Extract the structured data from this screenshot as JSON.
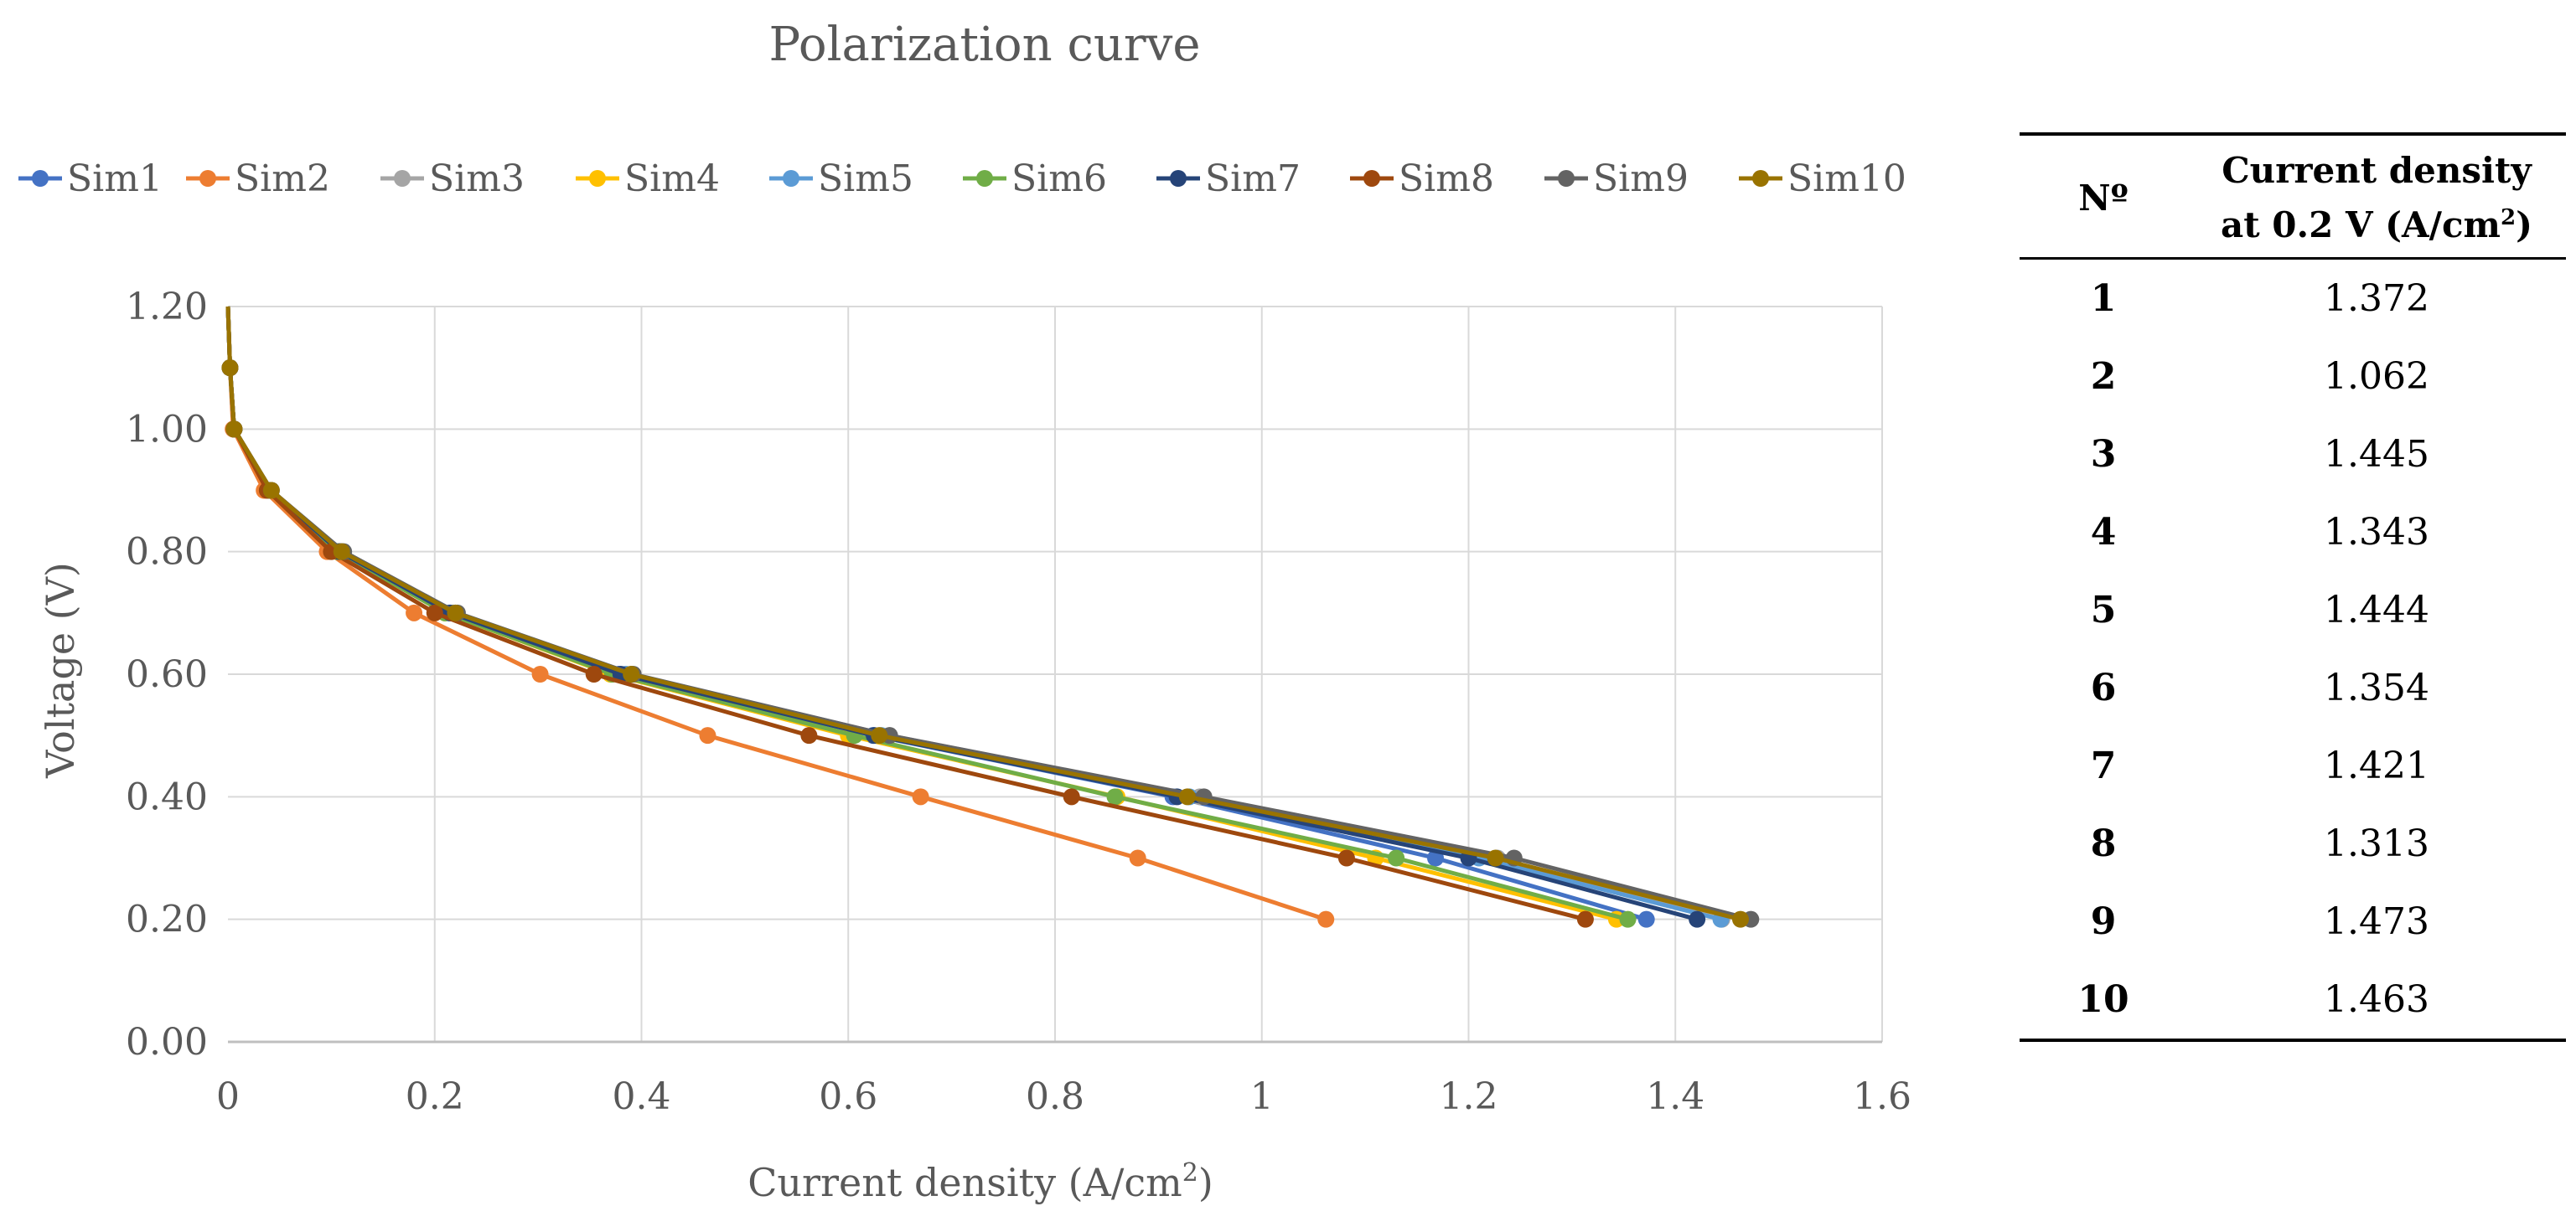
{
  "chart_data": {
    "type": "line",
    "title": "Polarization curve",
    "xlabel": "Current density (A/cm²)",
    "xlabel_main": "Current density (A/cm",
    "xlabel_sup": "2",
    "xlabel_end": ")",
    "ylabel": "Voltage (V)",
    "xlim": [
      0,
      1.6
    ],
    "ylim": [
      0,
      1.2
    ],
    "x_ticks": [
      0,
      0.2,
      0.4,
      0.6,
      0.8,
      1,
      1.2,
      1.4,
      1.6
    ],
    "x_tick_labels": [
      "0",
      "0.2",
      "0.4",
      "0.6",
      "0.8",
      "1",
      "1.2",
      "1.4",
      "1.6"
    ],
    "y_ticks": [
      0,
      0.2,
      0.4,
      0.6,
      0.8,
      1.0,
      1.2
    ],
    "y_tick_labels": [
      "0.00",
      "0.20",
      "0.40",
      "0.60",
      "0.80",
      "1.00",
      "1.20"
    ],
    "grid": true,
    "legend_position": "top",
    "series": [
      {
        "name": "Sim1",
        "color": "#4472C4",
        "x": [
          0,
          0.002,
          0.006,
          0.04,
          0.108,
          0.214,
          0.378,
          0.624,
          0.914,
          1.168,
          1.372
        ],
        "y": [
          1.2,
          1.1,
          1.0,
          0.9,
          0.8,
          0.7,
          0.6,
          0.5,
          0.4,
          0.3,
          0.2
        ]
      },
      {
        "name": "Sim2",
        "color": "#ED7D31",
        "x": [
          0,
          0.002,
          0.005,
          0.035,
          0.096,
          0.18,
          0.302,
          0.464,
          0.67,
          0.88,
          1.062
        ],
        "y": [
          1.2,
          1.1,
          1.0,
          0.9,
          0.8,
          0.7,
          0.6,
          0.5,
          0.4,
          0.3,
          0.2
        ]
      },
      {
        "name": "Sim3",
        "color": "#A5A5A5",
        "x": [
          0,
          0.002,
          0.006,
          0.042,
          0.11,
          0.22,
          0.39,
          0.64,
          0.94,
          1.228,
          1.445
        ],
        "y": [
          1.2,
          1.1,
          1.0,
          0.9,
          0.8,
          0.7,
          0.6,
          0.5,
          0.4,
          0.3,
          0.2
        ]
      },
      {
        "name": "Sim4",
        "color": "#FFC000",
        "x": [
          0,
          0.002,
          0.006,
          0.04,
          0.106,
          0.21,
          0.37,
          0.6,
          0.86,
          1.11,
          1.343
        ],
        "y": [
          1.2,
          1.1,
          1.0,
          0.9,
          0.8,
          0.7,
          0.6,
          0.5,
          0.4,
          0.3,
          0.2
        ]
      },
      {
        "name": "Sim5",
        "color": "#5B9BD5",
        "x": [
          0,
          0.002,
          0.006,
          0.042,
          0.11,
          0.218,
          0.385,
          0.632,
          0.93,
          1.21,
          1.444
        ],
        "y": [
          1.2,
          1.1,
          1.0,
          0.9,
          0.8,
          0.7,
          0.6,
          0.5,
          0.4,
          0.3,
          0.2
        ]
      },
      {
        "name": "Sim6",
        "color": "#70AD47",
        "x": [
          0,
          0.002,
          0.006,
          0.04,
          0.106,
          0.21,
          0.372,
          0.606,
          0.858,
          1.13,
          1.354
        ],
        "y": [
          1.2,
          1.1,
          1.0,
          0.9,
          0.8,
          0.7,
          0.6,
          0.5,
          0.4,
          0.3,
          0.2
        ]
      },
      {
        "name": "Sim7",
        "color": "#264478",
        "x": [
          0,
          0.002,
          0.006,
          0.041,
          0.108,
          0.215,
          0.38,
          0.625,
          0.918,
          1.2,
          1.421
        ],
        "y": [
          1.2,
          1.1,
          1.0,
          0.9,
          0.8,
          0.7,
          0.6,
          0.5,
          0.4,
          0.3,
          0.2
        ]
      },
      {
        "name": "Sim8",
        "color": "#9E480E",
        "x": [
          0,
          0.002,
          0.006,
          0.038,
          0.1,
          0.2,
          0.354,
          0.562,
          0.816,
          1.082,
          1.313
        ],
        "y": [
          1.2,
          1.1,
          1.0,
          0.9,
          0.8,
          0.7,
          0.6,
          0.5,
          0.4,
          0.3,
          0.2
        ]
      },
      {
        "name": "Sim9",
        "color": "#636363",
        "x": [
          0,
          0.002,
          0.006,
          0.042,
          0.112,
          0.222,
          0.392,
          0.64,
          0.944,
          1.244,
          1.473
        ],
        "y": [
          1.2,
          1.1,
          1.0,
          0.9,
          0.8,
          0.7,
          0.6,
          0.5,
          0.4,
          0.3,
          0.2
        ]
      },
      {
        "name": "Sim10",
        "color": "#997300",
        "x": [
          0,
          0.002,
          0.006,
          0.042,
          0.11,
          0.22,
          0.39,
          0.63,
          0.928,
          1.226,
          1.463
        ],
        "y": [
          1.2,
          1.1,
          1.0,
          0.9,
          0.8,
          0.7,
          0.6,
          0.5,
          0.4,
          0.3,
          0.2
        ]
      }
    ]
  },
  "table": {
    "header_no": "Nº",
    "header_cd_line1": "Current density",
    "header_cd_line2_main": "at 0.2 V (A/cm",
    "header_cd_line2_sup": "2",
    "header_cd_line2_end": ")",
    "rows": [
      {
        "no": "1",
        "value": "1.372"
      },
      {
        "no": "2",
        "value": "1.062"
      },
      {
        "no": "3",
        "value": "1.445"
      },
      {
        "no": "4",
        "value": "1.343"
      },
      {
        "no": "5",
        "value": "1.444"
      },
      {
        "no": "6",
        "value": "1.354"
      },
      {
        "no": "7",
        "value": "1.421"
      },
      {
        "no": "8",
        "value": "1.313"
      },
      {
        "no": "9",
        "value": "1.473"
      },
      {
        "no": "10",
        "value": "1.463"
      }
    ]
  }
}
